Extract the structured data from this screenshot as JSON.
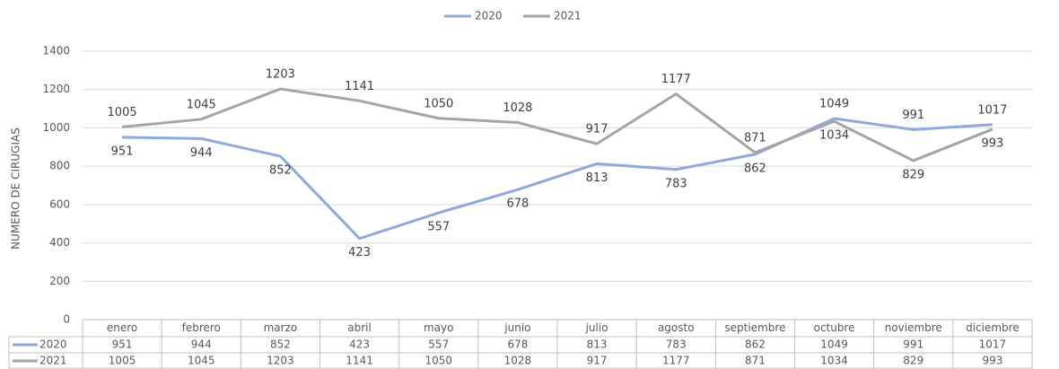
{
  "chart_data": {
    "type": "line",
    "y_label": "NUMERO DE CIRUGIAS",
    "categories": [
      "enero",
      "febrero",
      "marzo",
      "abril",
      "mayo",
      "junio",
      "julio",
      "agosto",
      "septiembre",
      "octubre",
      "noviembre",
      "diciembre"
    ],
    "series": [
      {
        "name": "2020",
        "color": "#8eaadb",
        "values": [
          951,
          944,
          852,
          423,
          557,
          678,
          813,
          783,
          862,
          1049,
          991,
          1017
        ]
      },
      {
        "name": "2021",
        "color": "#a5a5a5",
        "values": [
          1005,
          1045,
          1203,
          1141,
          1050,
          1028,
          917,
          1177,
          871,
          1034,
          829,
          993
        ]
      }
    ],
    "ylim": [
      0,
      1400
    ],
    "yticks": [
      0,
      200,
      400,
      600,
      800,
      1000,
      1200,
      1400
    ],
    "grid": true,
    "legend": "top"
  }
}
